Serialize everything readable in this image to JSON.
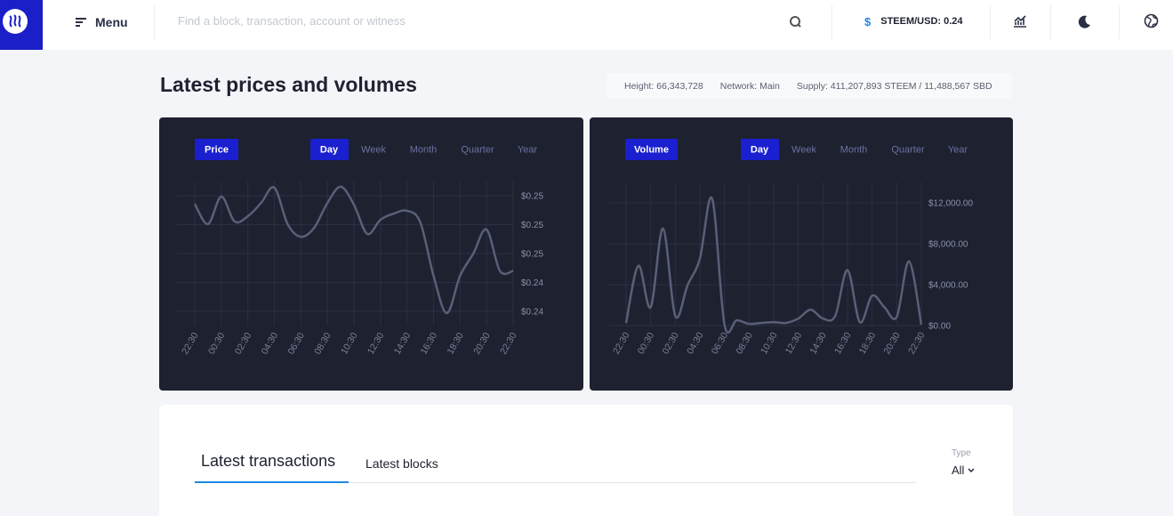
{
  "header": {
    "menu": "Menu",
    "search_placeholder": "Find a block, transaction, account or witness",
    "currency_symbol": "$",
    "price": "STEEM/USD: 0.24"
  },
  "page_title": "Latest prices and volumes",
  "stats": {
    "height": "Height: 66,343,728",
    "network": "Network: Main",
    "supply": "Supply: 411,207,893 STEEM / 11,488,567 SBD"
  },
  "chart_data": [
    {
      "type": "line",
      "label": "Price",
      "ranges": [
        "Day",
        "Week",
        "Month",
        "Quarter",
        "Year"
      ],
      "categories": [
        "22:30",
        null,
        "00:30",
        null,
        "02:30",
        null,
        "04:30",
        null,
        "06:30",
        null,
        "08:30",
        null,
        "10:30",
        null,
        "12:30",
        null,
        "14:30",
        null,
        "16:30",
        null,
        "18:30",
        null,
        "20:30",
        null,
        "22:30"
      ],
      "series": [
        {
          "color": "#5a5f78",
          "values": [
            0.24722,
            0.24652,
            0.24747,
            0.24661,
            0.24679,
            0.24725,
            0.24778,
            0.24652,
            0.24608,
            0.24639,
            0.24725,
            0.24781,
            0.24719,
            0.24618,
            0.24667,
            0.24688,
            0.24698,
            0.24658,
            0.24473,
            0.24344,
            0.24473,
            0.2455,
            0.24633,
            0.2449,
            0.2449
          ]
        }
      ],
      "ylim": [
        0.243,
        0.248
      ],
      "yticks": [
        {
          "value": 0.2475,
          "label": "$0.25"
        },
        {
          "value": 0.2465,
          "label": "$0.25"
        },
        {
          "value": 0.2455,
          "label": "$0.25"
        },
        {
          "value": 0.2445,
          "label": "$0.24"
        },
        {
          "value": 0.2435,
          "label": "$0.24"
        }
      ],
      "grid": true
    },
    {
      "type": "line",
      "label": "Volume",
      "ranges": [
        "Day",
        "Week",
        "Month",
        "Quarter",
        "Year"
      ],
      "categories": [
        "22:30",
        null,
        "00:30",
        null,
        "02:30",
        null,
        "04:30",
        null,
        "06:30",
        null,
        "08:30",
        null,
        "10:30",
        null,
        "12:30",
        null,
        "14:30",
        null,
        "16:30",
        null,
        "18:30",
        null,
        "20:30",
        null,
        "22:30"
      ],
      "series": [
        {
          "color": "#5a5f78",
          "values": [
            260,
            5850,
            1800,
            9500,
            950,
            3950,
            6550,
            12400,
            100,
            520,
            170,
            260,
            340,
            260,
            690,
            1550,
            690,
            950,
            5420,
            340,
            2920,
            1800,
            860,
            6280,
            100
          ]
        }
      ],
      "ylim": [
        0,
        14000
      ],
      "yticks": [
        {
          "value": 12000,
          "label": "$12,000.00"
        },
        {
          "value": 8000,
          "label": "$8,000.00"
        },
        {
          "value": 4000,
          "label": "$4,000.00"
        },
        {
          "value": 0,
          "label": "$0.00"
        }
      ],
      "grid": true
    }
  ],
  "transactions": {
    "tabs": [
      "Latest transactions",
      "Latest blocks"
    ],
    "filter_label": "Type",
    "filter_value": "All"
  }
}
